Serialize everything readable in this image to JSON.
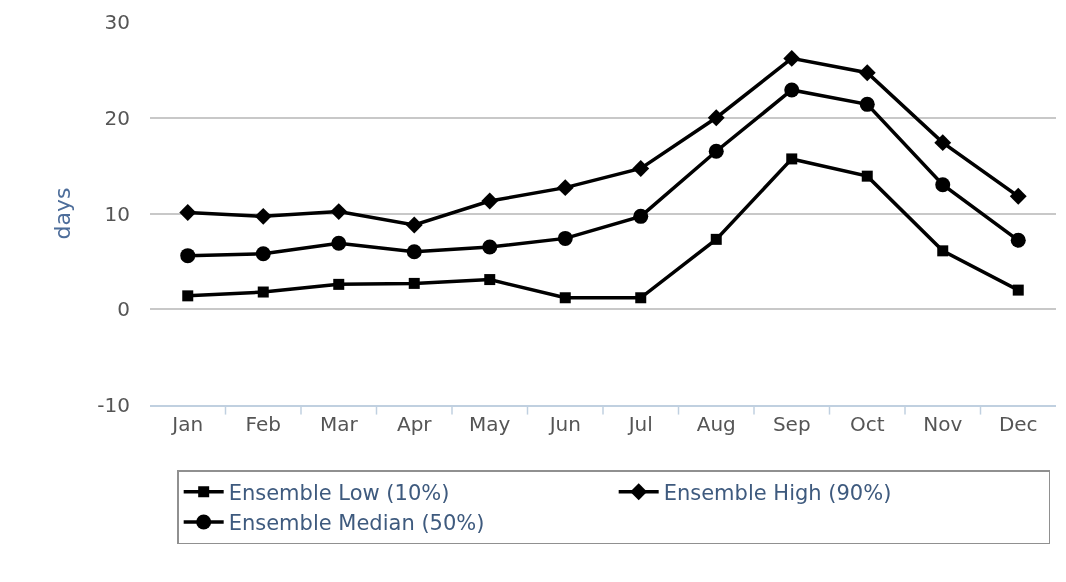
{
  "chart_data": {
    "type": "line",
    "ylabel": "days",
    "categories": [
      "Jan",
      "Feb",
      "Mar",
      "Apr",
      "May",
      "Jun",
      "Jul",
      "Aug",
      "Sep",
      "Oct",
      "Nov",
      "Dec"
    ],
    "series": [
      {
        "name": "Ensemble Low (10%)",
        "color": "#000000",
        "marker": "square",
        "values": [
          1.4,
          1.8,
          2.6,
          2.7,
          3.1,
          1.2,
          1.2,
          7.3,
          15.7,
          13.9,
          6.1,
          2.0
        ]
      },
      {
        "name": "Ensemble High (90%)",
        "color": "#000000",
        "marker": "diamond",
        "values": [
          10.1,
          9.7,
          10.2,
          8.8,
          11.3,
          12.7,
          14.7,
          20.0,
          26.2,
          24.7,
          17.4,
          11.8
        ]
      },
      {
        "name": "Ensemble Median (50%)",
        "color": "#000000",
        "marker": "circle",
        "values": [
          5.6,
          5.8,
          6.9,
          6.0,
          6.5,
          7.4,
          9.7,
          16.5,
          22.9,
          21.4,
          13.0,
          7.2
        ]
      }
    ],
    "ylim": [
      -10,
      30
    ],
    "yticks": [
      -10,
      0,
      10,
      20,
      30
    ],
    "grid": "y",
    "legend": "bottom",
    "line_style": "solid"
  }
}
